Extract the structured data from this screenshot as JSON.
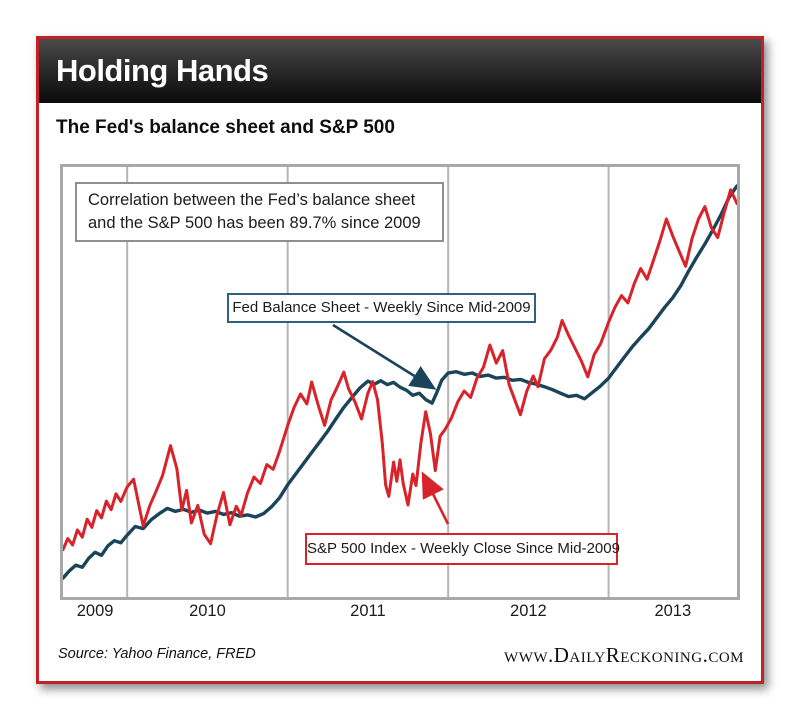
{
  "header": {
    "title": "Holding Hands"
  },
  "footer": {
    "source": "Source: Yahoo Finance, FRED",
    "website": "www.DailyReckoning.com"
  },
  "colors": {
    "frame_red": "#c32127",
    "titlebar_black": "#1c1c1c",
    "plot_border": "#a8a8a8",
    "gridline": "#b5b5b5"
  },
  "chart_data": {
    "type": "line",
    "title": "The Fed's balance sheet and S&P 500",
    "x_axis": {
      "tick_labels": [
        "2009",
        "2010",
        "2011",
        "2012",
        "2013"
      ],
      "range_decimal_years": [
        2009.6,
        2013.8
      ],
      "gridline_years": [
        2010,
        2011,
        2012,
        2013
      ],
      "grid": "vertical gridlines only, year labels centered between gridlines"
    },
    "y_axis": {
      "visible": false,
      "unit": "relative level: 0 = plot bottom, 100 = plot top (chart displays no numeric y-axis)"
    },
    "legend_position": "inline annotation boxes with pointer arrows",
    "annotations": {
      "correlation": {
        "line1": "Correlation between the Fed’s balance sheet",
        "line2": "and the S&P 500 has been 89.7% since 2009"
      }
    },
    "series": [
      {
        "name": "Fed Balance Sheet - Weekly Since Mid-2009",
        "color": "#1a4459",
        "label_border_color": "#2f617f",
        "points": [
          [
            2009.6,
            4.4
          ],
          [
            2009.64,
            6.1
          ],
          [
            2009.68,
            7.4
          ],
          [
            2009.72,
            6.9
          ],
          [
            2009.76,
            9.0
          ],
          [
            2009.8,
            10.4
          ],
          [
            2009.84,
            9.7
          ],
          [
            2009.88,
            11.9
          ],
          [
            2009.92,
            13.1
          ],
          [
            2009.96,
            12.6
          ],
          [
            2010.0,
            14.4
          ],
          [
            2010.05,
            16.4
          ],
          [
            2010.1,
            15.9
          ],
          [
            2010.15,
            18.0
          ],
          [
            2010.2,
            19.4
          ],
          [
            2010.25,
            20.6
          ],
          [
            2010.3,
            19.9
          ],
          [
            2010.35,
            20.4
          ],
          [
            2010.4,
            19.7
          ],
          [
            2010.45,
            20.2
          ],
          [
            2010.5,
            19.5
          ],
          [
            2010.55,
            19.9
          ],
          [
            2010.6,
            19.2
          ],
          [
            2010.65,
            19.6
          ],
          [
            2010.7,
            18.8
          ],
          [
            2010.75,
            19.1
          ],
          [
            2010.8,
            18.6
          ],
          [
            2010.85,
            19.4
          ],
          [
            2010.9,
            21.0
          ],
          [
            2010.95,
            23.1
          ],
          [
            2011.0,
            26.1
          ],
          [
            2011.05,
            28.6
          ],
          [
            2011.1,
            31.1
          ],
          [
            2011.15,
            33.6
          ],
          [
            2011.2,
            36.1
          ],
          [
            2011.25,
            38.6
          ],
          [
            2011.3,
            41.4
          ],
          [
            2011.35,
            44.1
          ],
          [
            2011.4,
            46.4
          ],
          [
            2011.45,
            48.6
          ],
          [
            2011.5,
            50.2
          ],
          [
            2011.54,
            49.5
          ],
          [
            2011.58,
            50.3
          ],
          [
            2011.62,
            49.4
          ],
          [
            2011.66,
            49.9
          ],
          [
            2011.7,
            48.8
          ],
          [
            2011.74,
            48.1
          ],
          [
            2011.78,
            46.9
          ],
          [
            2011.82,
            47.4
          ],
          [
            2011.86,
            45.9
          ],
          [
            2011.9,
            45.1
          ],
          [
            2011.93,
            47.6
          ],
          [
            2011.96,
            50.4
          ],
          [
            2012.0,
            52.1
          ],
          [
            2012.05,
            52.4
          ],
          [
            2012.1,
            51.8
          ],
          [
            2012.15,
            52.1
          ],
          [
            2012.2,
            51.3
          ],
          [
            2012.25,
            51.6
          ],
          [
            2012.3,
            50.9
          ],
          [
            2012.35,
            51.1
          ],
          [
            2012.4,
            50.4
          ],
          [
            2012.45,
            50.6
          ],
          [
            2012.5,
            49.9
          ],
          [
            2012.55,
            49.5
          ],
          [
            2012.6,
            48.9
          ],
          [
            2012.65,
            48.2
          ],
          [
            2012.7,
            47.4
          ],
          [
            2012.75,
            46.6
          ],
          [
            2012.8,
            46.9
          ],
          [
            2012.85,
            46.1
          ],
          [
            2012.9,
            47.6
          ],
          [
            2012.95,
            49.1
          ],
          [
            2013.0,
            50.9
          ],
          [
            2013.05,
            53.4
          ],
          [
            2013.1,
            55.9
          ],
          [
            2013.15,
            58.3
          ],
          [
            2013.2,
            60.4
          ],
          [
            2013.25,
            62.4
          ],
          [
            2013.3,
            64.9
          ],
          [
            2013.35,
            67.4
          ],
          [
            2013.4,
            69.6
          ],
          [
            2013.45,
            72.4
          ],
          [
            2013.5,
            75.9
          ],
          [
            2013.55,
            79.1
          ],
          [
            2013.6,
            82.1
          ],
          [
            2013.65,
            85.4
          ],
          [
            2013.7,
            88.9
          ],
          [
            2013.75,
            92.9
          ],
          [
            2013.8,
            95.6
          ]
        ]
      },
      {
        "name": "S&P 500 Index - Weekly Close Since Mid-2009",
        "color": "#d8232a",
        "label_border_color": "#d8232b",
        "points": [
          [
            2009.6,
            11.0
          ],
          [
            2009.63,
            13.6
          ],
          [
            2009.66,
            12.1
          ],
          [
            2009.69,
            15.6
          ],
          [
            2009.72,
            13.9
          ],
          [
            2009.75,
            18.1
          ],
          [
            2009.78,
            16.2
          ],
          [
            2009.81,
            20.1
          ],
          [
            2009.84,
            18.4
          ],
          [
            2009.87,
            22.3
          ],
          [
            2009.9,
            20.3
          ],
          [
            2009.93,
            24.0
          ],
          [
            2009.96,
            22.2
          ],
          [
            2010.0,
            25.6
          ],
          [
            2010.04,
            27.4
          ],
          [
            2010.1,
            16.5
          ],
          [
            2010.14,
            21.2
          ],
          [
            2010.18,
            24.6
          ],
          [
            2010.22,
            28.2
          ],
          [
            2010.27,
            35.2
          ],
          [
            2010.31,
            29.8
          ],
          [
            2010.34,
            20.2
          ],
          [
            2010.37,
            24.8
          ],
          [
            2010.4,
            17.2
          ],
          [
            2010.44,
            21.3
          ],
          [
            2010.48,
            14.6
          ],
          [
            2010.52,
            12.4
          ],
          [
            2010.56,
            19.2
          ],
          [
            2010.6,
            24.3
          ],
          [
            2010.64,
            16.8
          ],
          [
            2010.68,
            21.1
          ],
          [
            2010.71,
            19.0
          ],
          [
            2010.75,
            24.2
          ],
          [
            2010.79,
            27.9
          ],
          [
            2010.83,
            26.4
          ],
          [
            2010.87,
            30.8
          ],
          [
            2010.91,
            29.7
          ],
          [
            2010.95,
            33.9
          ],
          [
            2011.0,
            39.9
          ],
          [
            2011.04,
            44.1
          ],
          [
            2011.08,
            47.2
          ],
          [
            2011.12,
            44.9
          ],
          [
            2011.15,
            50.0
          ],
          [
            2011.19,
            44.6
          ],
          [
            2011.23,
            39.9
          ],
          [
            2011.27,
            45.8
          ],
          [
            2011.31,
            48.9
          ],
          [
            2011.35,
            52.3
          ],
          [
            2011.38,
            48.4
          ],
          [
            2011.42,
            45.3
          ],
          [
            2011.46,
            41.4
          ],
          [
            2011.5,
            47.4
          ],
          [
            2011.53,
            50.1
          ],
          [
            2011.56,
            45.9
          ],
          [
            2011.59,
            35.8
          ],
          [
            2011.61,
            26.1
          ],
          [
            2011.63,
            23.4
          ],
          [
            2011.66,
            31.4
          ],
          [
            2011.68,
            26.9
          ],
          [
            2011.7,
            31.9
          ],
          [
            2011.72,
            26.4
          ],
          [
            2011.75,
            21.4
          ],
          [
            2011.78,
            28.6
          ],
          [
            2011.8,
            25.9
          ],
          [
            2011.83,
            35.8
          ],
          [
            2011.86,
            43.1
          ],
          [
            2011.89,
            37.9
          ],
          [
            2011.92,
            29.4
          ],
          [
            2011.95,
            37.4
          ],
          [
            2011.98,
            38.9
          ],
          [
            2012.02,
            41.6
          ],
          [
            2012.06,
            45.4
          ],
          [
            2012.1,
            47.9
          ],
          [
            2012.14,
            46.4
          ],
          [
            2012.18,
            50.9
          ],
          [
            2012.22,
            53.4
          ],
          [
            2012.26,
            58.6
          ],
          [
            2012.3,
            54.4
          ],
          [
            2012.34,
            57.3
          ],
          [
            2012.38,
            49.4
          ],
          [
            2012.42,
            45.4
          ],
          [
            2012.45,
            42.4
          ],
          [
            2012.49,
            47.9
          ],
          [
            2012.53,
            51.4
          ],
          [
            2012.56,
            48.9
          ],
          [
            2012.6,
            55.4
          ],
          [
            2012.64,
            57.4
          ],
          [
            2012.68,
            60.4
          ],
          [
            2012.71,
            64.3
          ],
          [
            2012.75,
            60.9
          ],
          [
            2012.79,
            57.9
          ],
          [
            2012.83,
            54.9
          ],
          [
            2012.87,
            51.2
          ],
          [
            2012.91,
            56.4
          ],
          [
            2012.95,
            58.9
          ],
          [
            2013.0,
            63.9
          ],
          [
            2013.04,
            67.4
          ],
          [
            2013.08,
            70.1
          ],
          [
            2013.12,
            68.4
          ],
          [
            2013.16,
            72.9
          ],
          [
            2013.2,
            76.4
          ],
          [
            2013.24,
            73.9
          ],
          [
            2013.28,
            78.4
          ],
          [
            2013.32,
            82.9
          ],
          [
            2013.36,
            87.9
          ],
          [
            2013.4,
            83.9
          ],
          [
            2013.44,
            80.4
          ],
          [
            2013.48,
            76.9
          ],
          [
            2013.52,
            83.4
          ],
          [
            2013.56,
            87.9
          ],
          [
            2013.6,
            90.8
          ],
          [
            2013.64,
            85.9
          ],
          [
            2013.68,
            83.6
          ],
          [
            2013.72,
            89.4
          ],
          [
            2013.76,
            94.7
          ],
          [
            2013.8,
            91.5
          ]
        ]
      }
    ]
  }
}
